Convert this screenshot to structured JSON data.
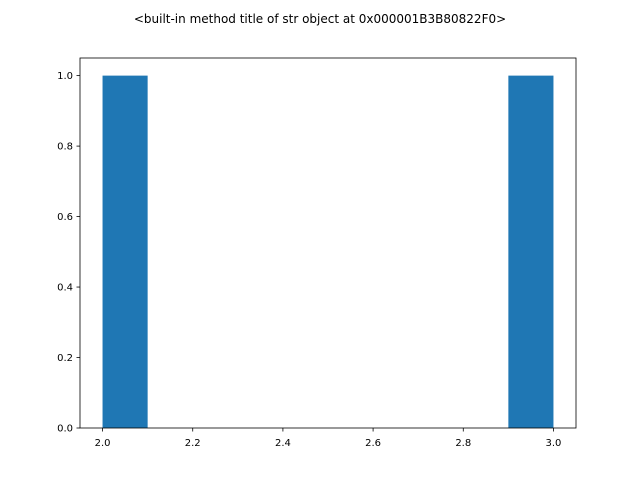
{
  "chart_data": {
    "type": "bar",
    "title": "<built-in method title of str object at 0x000001B3B80822F0>",
    "xlabel": "",
    "ylabel": "",
    "xlim": [
      1.95,
      3.05
    ],
    "ylim": [
      0.0,
      1.05
    ],
    "grid": false,
    "bins": [
      {
        "x0": 2.0,
        "x1": 2.1,
        "value": 1
      },
      {
        "x0": 2.1,
        "x1": 2.2,
        "value": 0
      },
      {
        "x0": 2.2,
        "x1": 2.3,
        "value": 0
      },
      {
        "x0": 2.3,
        "x1": 2.4,
        "value": 0
      },
      {
        "x0": 2.4,
        "x1": 2.5,
        "value": 0
      },
      {
        "x0": 2.5,
        "x1": 2.6,
        "value": 0
      },
      {
        "x0": 2.6,
        "x1": 2.7,
        "value": 0
      },
      {
        "x0": 2.7,
        "x1": 2.8,
        "value": 0
      },
      {
        "x0": 2.8,
        "x1": 2.9,
        "value": 0
      },
      {
        "x0": 2.9,
        "x1": 3.0,
        "value": 1
      }
    ],
    "x_ticks": [
      {
        "value": 2.0,
        "label": "2.0"
      },
      {
        "value": 2.2,
        "label": "2.2"
      },
      {
        "value": 2.4,
        "label": "2.4"
      },
      {
        "value": 2.6,
        "label": "2.6"
      },
      {
        "value": 2.8,
        "label": "2.8"
      },
      {
        "value": 3.0,
        "label": "3.0"
      }
    ],
    "y_ticks": [
      {
        "value": 0.0,
        "label": "0.0"
      },
      {
        "value": 0.2,
        "label": "0.2"
      },
      {
        "value": 0.4,
        "label": "0.4"
      },
      {
        "value": 0.6,
        "label": "0.6"
      },
      {
        "value": 0.8,
        "label": "0.8"
      },
      {
        "value": 1.0,
        "label": "1.0"
      }
    ],
    "colors": {
      "bar": "#1f77b4",
      "axis": "#000000",
      "background": "#ffffff"
    }
  }
}
